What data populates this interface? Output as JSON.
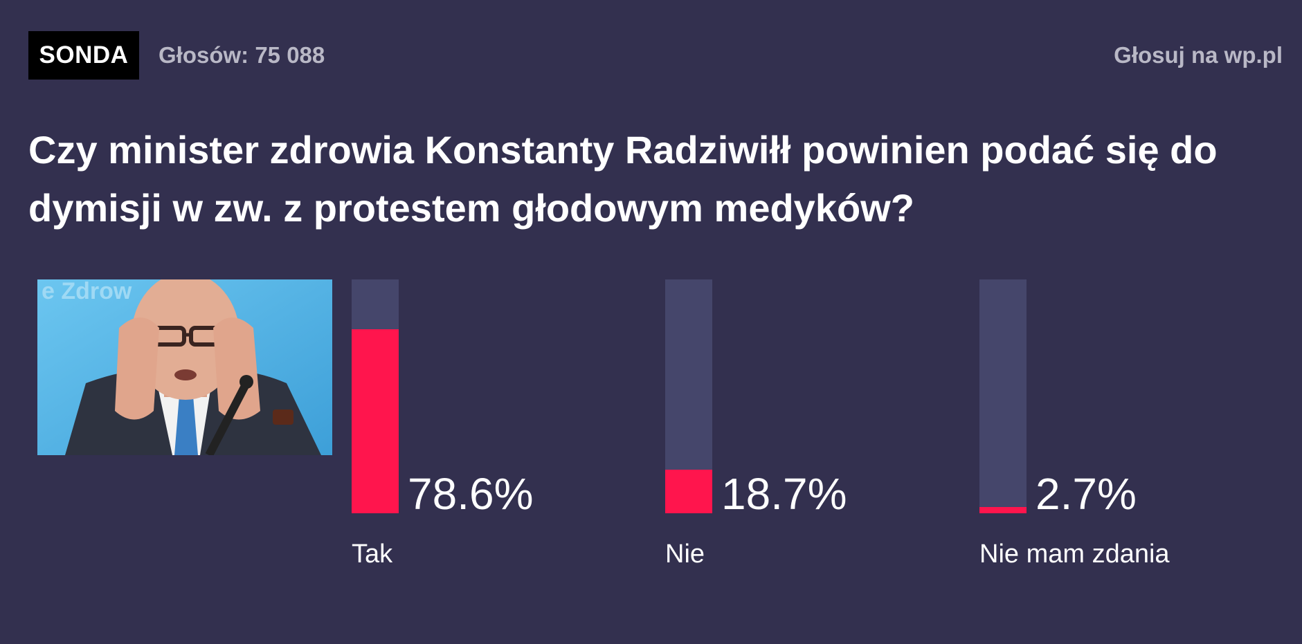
{
  "header": {
    "badge": "SONDA",
    "votes": "Głosów: 75 088",
    "vote_link": "Głosuj na wp.pl"
  },
  "question": "Czy minister zdrowia Konstanty Radziwiłł powinien podać się do dymisji w zw. z protestem głodowym medyków?",
  "photo": {
    "description_icon": "person-photo",
    "background_text": "e Zdrow"
  },
  "colors": {
    "background": "#33304f",
    "bar_track": "#45466b",
    "bar_fill": "#ff154d",
    "muted_text": "#b9b8c6"
  },
  "chart_data": {
    "type": "bar",
    "categories": [
      "Tak",
      "Nie",
      "Nie mam zdania"
    ],
    "values": [
      78.6,
      18.7,
      2.7
    ],
    "ylim": [
      0,
      100
    ]
  },
  "options": [
    {
      "label": "Tak",
      "percent": 78.6,
      "percent_text": "78.6%"
    },
    {
      "label": "Nie",
      "percent": 18.7,
      "percent_text": "18.7%"
    },
    {
      "label": "Nie mam zdania",
      "percent": 2.7,
      "percent_text": "2.7%"
    }
  ]
}
